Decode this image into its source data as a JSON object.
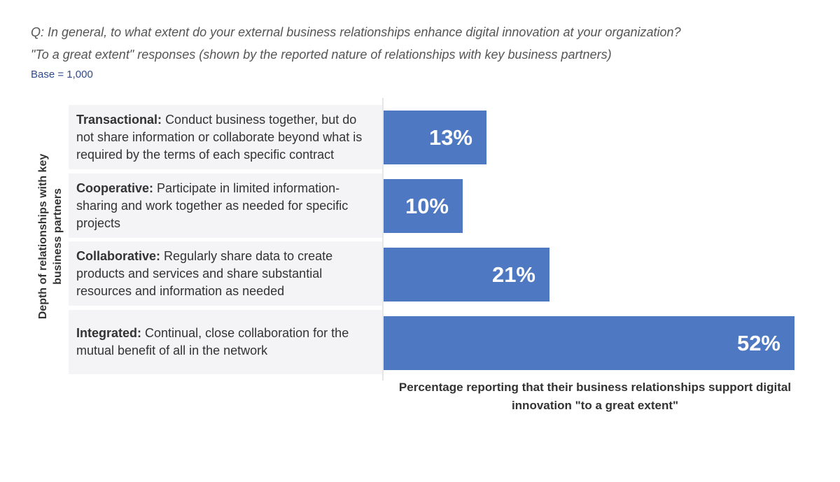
{
  "header": {
    "question": "Q: In general, to what extent do your external business relationships enhance digital innovation at your organization?",
    "subtitle": "\"To a great extent\" responses (shown by the reported nature of relationships with key business partners)",
    "base": "Base = 1,000"
  },
  "chart_data": {
    "type": "bar",
    "orientation": "horizontal",
    "ylabel": "Depth of relationships with key business partners",
    "xlabel": "Percentage reporting that their business relationships support digital innovation \"to a great extent\"",
    "xlim": [
      0,
      52
    ],
    "grid": false,
    "legend": "none",
    "bar_color": "#4e78c1",
    "categories": [
      {
        "term": "Transactional:",
        "description": "Conduct business together, but do not share information or collaborate beyond what is required by the terms of each specific contract"
      },
      {
        "term": "Cooperative:",
        "description": "Participate in limited information-sharing and work together as needed for specific projects"
      },
      {
        "term": "Collaborative:",
        "description": "Regularly share data to create products and services and share substantial resources and information as needed"
      },
      {
        "term": "Integrated:",
        "description": "Continual, close collaboration for the mutual benefit of all in the network"
      }
    ],
    "values": [
      13,
      10,
      21,
      52
    ],
    "value_labels": [
      "13%",
      "10%",
      "21%",
      "52%"
    ]
  }
}
